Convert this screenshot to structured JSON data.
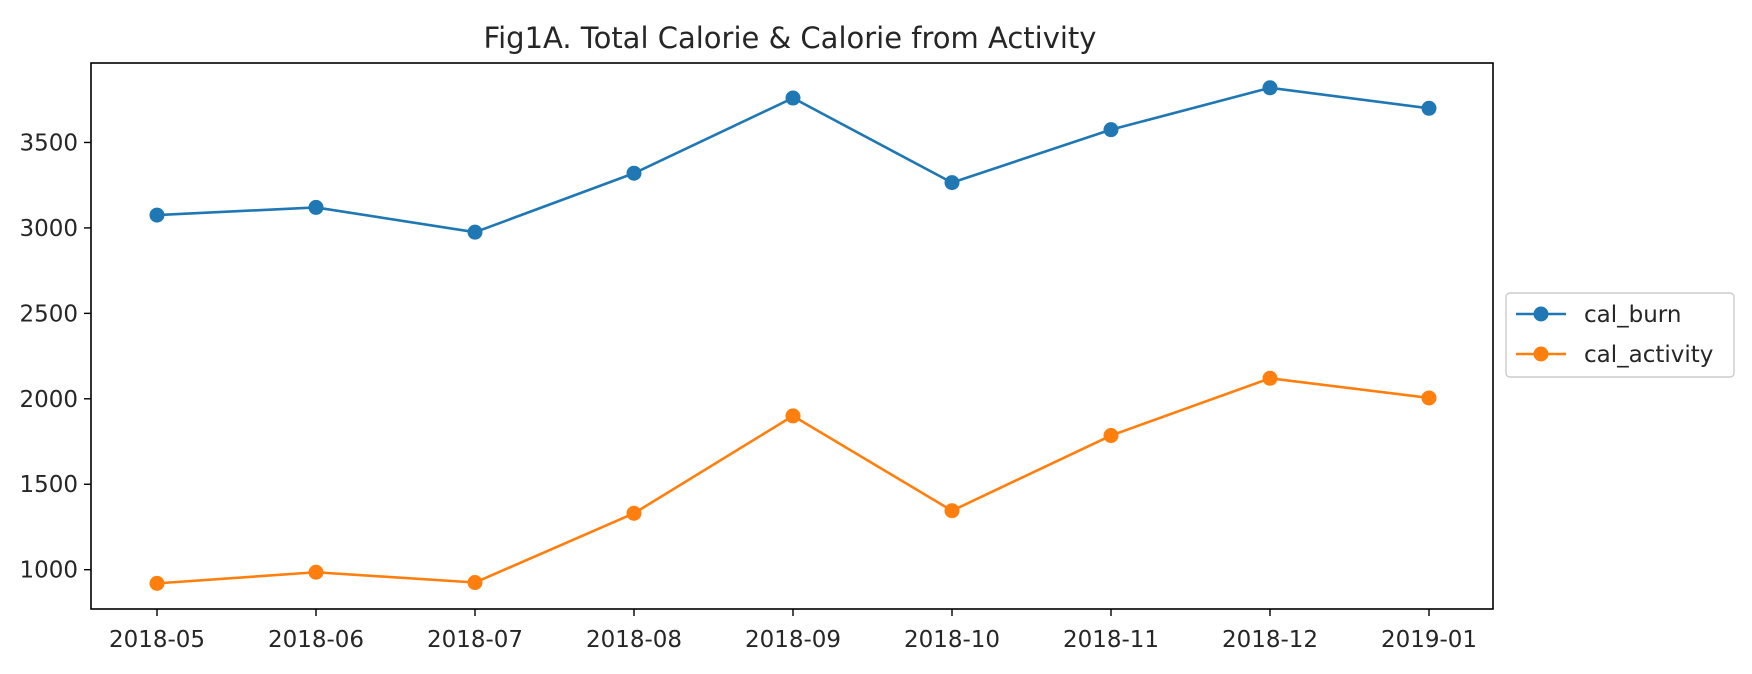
{
  "chart_data": {
    "type": "line",
    "title": "Fig1A. Total Calorie & Calorie from Activity",
    "xlabel": "",
    "ylabel": "",
    "categories": [
      "2018-05",
      "2018-06",
      "2018-07",
      "2018-08",
      "2018-09",
      "2018-10",
      "2018-11",
      "2018-12",
      "2019-01"
    ],
    "x_tick_labels": [
      "2018-05",
      "2018-06",
      "2018-07",
      "2018-08",
      "2018-09",
      "2018-10",
      "2018-11",
      "2018-12",
      "2019-01"
    ],
    "y_ticks": [
      1000,
      1500,
      2000,
      2500,
      3000,
      3500
    ],
    "y_tick_labels": [
      "1000",
      "1500",
      "2000",
      "2500",
      "3000",
      "3500"
    ],
    "ylim": [
      770,
      3965
    ],
    "grid": false,
    "legend_position": "outside right, center",
    "series": [
      {
        "name": "cal_burn",
        "color": "#1f77b4",
        "marker": "circle",
        "values": [
          3075,
          3120,
          2975,
          3320,
          3760,
          3265,
          3575,
          3820,
          3700
        ]
      },
      {
        "name": "cal_activity",
        "color": "#ff7f0e",
        "marker": "circle",
        "values": [
          920,
          985,
          925,
          1330,
          1900,
          1345,
          1785,
          2120,
          2005
        ]
      }
    ]
  }
}
